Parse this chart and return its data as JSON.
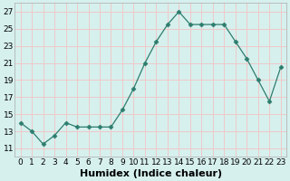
{
  "x": [
    0,
    1,
    2,
    3,
    4,
    5,
    6,
    7,
    8,
    9,
    10,
    11,
    12,
    13,
    14,
    15,
    16,
    17,
    18,
    19,
    20,
    21,
    22,
    23
  ],
  "y": [
    14,
    13,
    11.5,
    12.5,
    14,
    13.5,
    13.5,
    13.5,
    13.5,
    15.5,
    18,
    21,
    23.5,
    25.5,
    27,
    25.5,
    25.5,
    25.5,
    25.5,
    23.5,
    21.5,
    19,
    16.5,
    20.5
  ],
  "line_color": "#2d7d6e",
  "marker": "D",
  "marker_size": 2.5,
  "bg_color": "#d6f0ee",
  "grid_color": "#f0c8c8",
  "xlabel": "Humidex (Indice chaleur)",
  "xlabel_fontsize": 8,
  "xlabel_weight": "bold",
  "yticks": [
    11,
    13,
    15,
    17,
    19,
    21,
    23,
    25,
    27
  ],
  "ylim": [
    10.0,
    28.0
  ],
  "xlim": [
    -0.5,
    23.5
  ],
  "xtick_labels": [
    "0",
    "1",
    "2",
    "3",
    "4",
    "5",
    "6",
    "7",
    "8",
    "9",
    "10",
    "11",
    "12",
    "13",
    "14",
    "15",
    "16",
    "17",
    "18",
    "19",
    "20",
    "21",
    "22",
    "23"
  ],
  "tick_fontsize": 6.5,
  "spine_color": "#aaaaaa",
  "line_width": 0.9
}
